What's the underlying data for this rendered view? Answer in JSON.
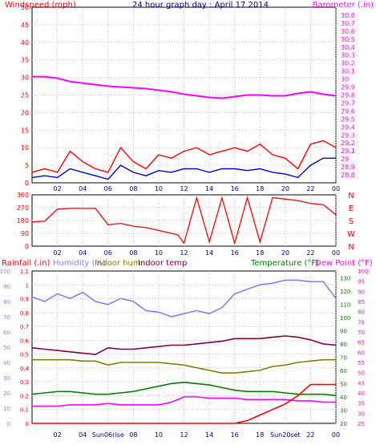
{
  "chart_data": [
    {
      "type": "line",
      "title": "24 hour graph day : April 17 2014",
      "ylabel_left": "Windspeed (mph)",
      "ylabel_right": "Barometer (.in)",
      "x_ticks": [
        "02",
        "04",
        "06",
        "08",
        "10",
        "12",
        "14",
        "16",
        "18",
        "20",
        "22",
        "00"
      ],
      "ylim_left": [
        0,
        50
      ],
      "ylim_right": [
        28.7,
        30.9
      ],
      "yticks_left": [
        "0",
        "5",
        "10",
        "15",
        "20",
        "25",
        "30",
        "35",
        "40",
        "45",
        "50"
      ],
      "yticks_right": [
        "28.8",
        "28.9",
        "29",
        "29.1",
        "29.2",
        "29.3",
        "29.4",
        "29.5",
        "29.6",
        "29.7",
        "29.8",
        "29.9",
        "30",
        "30.1",
        "30.2",
        "30.3",
        "30.4",
        "30.5",
        "30.6",
        "30.7",
        "30.8"
      ],
      "grid": true,
      "series": [
        {
          "name": "Barometer",
          "color": "#ff00ff",
          "axis": "right",
          "x": [
            0,
            1,
            2,
            3,
            4,
            5,
            6,
            7,
            8,
            9,
            10,
            11,
            12,
            13,
            14,
            15,
            16,
            17,
            18,
            19,
            20,
            21,
            22,
            23,
            24
          ],
          "values": [
            30.03,
            30.03,
            30.01,
            29.97,
            29.95,
            29.93,
            29.91,
            29.9,
            29.89,
            29.88,
            29.86,
            29.84,
            29.81,
            29.79,
            29.77,
            29.76,
            29.78,
            29.8,
            29.8,
            29.79,
            29.79,
            29.82,
            29.84,
            29.81,
            29.79
          ]
        },
        {
          "name": "Wind gust",
          "color": "#ff0000",
          "axis": "left",
          "x": [
            0,
            1,
            2,
            3,
            4,
            5,
            6,
            7,
            8,
            9,
            10,
            11,
            12,
            13,
            14,
            15,
            16,
            17,
            18,
            19,
            20,
            21,
            22,
            23,
            24
          ],
          "values": [
            3,
            4,
            3,
            9,
            6,
            4,
            3,
            10,
            6,
            4,
            8,
            7,
            9,
            10,
            8,
            9,
            10,
            9,
            11,
            8,
            7,
            4,
            11,
            12,
            10
          ]
        },
        {
          "name": "Wind speed",
          "color": "#0000cc",
          "axis": "left",
          "x": [
            0,
            1,
            2,
            3,
            4,
            5,
            6,
            7,
            8,
            9,
            10,
            11,
            12,
            13,
            14,
            15,
            16,
            17,
            18,
            19,
            20,
            21,
            22,
            23,
            24
          ],
          "values": [
            1.5,
            2,
            1.5,
            4,
            3,
            2,
            1,
            5,
            3,
            2,
            3.5,
            3,
            4,
            4,
            3,
            4,
            4,
            3.5,
            4,
            3,
            2.5,
            1.5,
            5,
            7,
            7
          ]
        }
      ]
    },
    {
      "type": "line",
      "ylabel_right": "N W S E N",
      "x_ticks": [
        "02",
        "04",
        "06",
        "08",
        "10",
        "12",
        "14",
        "16",
        "18",
        "20",
        "22",
        "00"
      ],
      "ylim": [
        0,
        360
      ],
      "yticks_left": [
        "0",
        "90",
        "180",
        "270",
        "360"
      ],
      "direction_labels": [
        "N",
        "W",
        "S",
        "E",
        "N"
      ],
      "grid": true,
      "series": [
        {
          "name": "Wind direction",
          "color": "#ff0000",
          "x": [
            0,
            1,
            2,
            3,
            4,
            5,
            6,
            7,
            8,
            9,
            10,
            11,
            11.5,
            12,
            13,
            14,
            15,
            16,
            17,
            18,
            19,
            20,
            21,
            22,
            23,
            24
          ],
          "values": [
            170,
            175,
            260,
            265,
            265,
            265,
            150,
            160,
            140,
            130,
            110,
            90,
            80,
            20,
            340,
            30,
            340,
            20,
            340,
            30,
            340,
            330,
            320,
            300,
            290,
            220
          ]
        }
      ]
    },
    {
      "type": "line",
      "x_ticks": [
        "02",
        "04",
        "Sun06rise",
        "08",
        "10",
        "12",
        "14",
        "16",
        "18",
        "Sun20set",
        "22",
        "00"
      ],
      "legend_top": [
        "Rainfall (.in)",
        "Humidity (%)",
        "Indoor hum",
        "Indoor temp",
        "Temperature (°F)",
        "Dew Point (°F)"
      ],
      "yaxis_rain": [
        "0",
        "0.1",
        "0.2",
        "0.3",
        "0.4",
        "0.5",
        "0.6",
        "0.7",
        "0.8",
        "0.9",
        "1",
        "1.1"
      ],
      "yaxis_humidity": [
        "0",
        "10",
        "20",
        "30",
        "40",
        "50",
        "60",
        "70",
        "80",
        "90",
        "100"
      ],
      "yaxis_temp": [
        "20",
        "30",
        "40",
        "50",
        "60",
        "70",
        "80",
        "90",
        "100",
        "110",
        "120",
        "130"
      ],
      "yaxis_dew": [
        "25",
        "30",
        "35",
        "40",
        "45",
        "50",
        "55",
        "60",
        "65",
        "70",
        "75",
        "80",
        "85",
        "90",
        "95",
        "100"
      ],
      "grid": true,
      "series": [
        {
          "name": "Humidity",
          "color": "#8080ff",
          "axis": "humidity",
          "x": [
            0,
            1,
            2,
            3,
            4,
            5,
            6,
            7,
            8,
            9,
            10,
            11,
            12,
            13,
            14,
            15,
            16,
            17,
            18,
            19,
            20,
            21,
            22,
            23,
            24
          ],
          "values": [
            83,
            80,
            85,
            82,
            86,
            80,
            78,
            82,
            80,
            74,
            73,
            70,
            72,
            74,
            72,
            76,
            85,
            88,
            91,
            92,
            94,
            94,
            93,
            93,
            82
          ]
        },
        {
          "name": "Indoor temp",
          "color": "#800040",
          "axis": "temp",
          "x": [
            0,
            1,
            2,
            3,
            4,
            5,
            6,
            7,
            8,
            9,
            10,
            11,
            12,
            13,
            14,
            15,
            16,
            17,
            18,
            19,
            20,
            21,
            22,
            23,
            24
          ],
          "values": [
            77,
            76,
            75,
            74,
            73,
            72,
            77,
            76,
            76,
            77,
            78,
            79,
            79,
            80,
            81,
            82,
            84,
            84,
            84,
            85,
            86,
            85,
            83,
            80,
            79
          ]
        },
        {
          "name": "Indoor hum",
          "color": "#808000",
          "axis": "temp",
          "x": [
            0,
            1,
            2,
            3,
            4,
            5,
            6,
            7,
            8,
            9,
            10,
            11,
            12,
            13,
            14,
            15,
            16,
            17,
            18,
            19,
            20,
            21,
            22,
            23,
            24
          ],
          "values": [
            68,
            68,
            68,
            68,
            67,
            67,
            64,
            66,
            66,
            66,
            66,
            65,
            64,
            62,
            60,
            58,
            58,
            59,
            60,
            63,
            64,
            66,
            67,
            68,
            68
          ]
        },
        {
          "name": "Temperature",
          "color": "#008000",
          "axis": "temp",
          "x": [
            0,
            1,
            2,
            3,
            4,
            5,
            6,
            7,
            8,
            9,
            10,
            11,
            12,
            13,
            14,
            15,
            16,
            17,
            18,
            19,
            20,
            21,
            22,
            23,
            24
          ],
          "values": [
            42,
            43,
            44,
            44,
            43,
            42,
            42,
            43,
            44,
            46,
            48,
            50,
            51,
            50,
            49,
            47,
            45,
            44,
            44,
            44,
            43,
            42,
            42,
            42,
            41
          ]
        },
        {
          "name": "Dew Point",
          "color": "#ff00ff",
          "axis": "temp",
          "x": [
            0,
            1,
            2,
            3,
            4,
            5,
            6,
            7,
            8,
            9,
            10,
            11,
            12,
            13,
            14,
            15,
            16,
            17,
            18,
            19,
            20,
            21,
            22,
            23,
            24
          ],
          "values": [
            33,
            33,
            33,
            34,
            34,
            34,
            35,
            34,
            34,
            34,
            34,
            36,
            40,
            40,
            39,
            39,
            39,
            38,
            38,
            38,
            38,
            37,
            37,
            36,
            36
          ]
        },
        {
          "name": "Rainfall",
          "color": "#ff0000",
          "axis": "rain",
          "x": [
            0,
            1,
            2,
            3,
            4,
            5,
            6,
            7,
            8,
            9,
            10,
            11,
            12,
            13,
            14,
            15,
            16,
            17,
            18,
            19,
            20,
            21,
            22,
            23,
            24
          ],
          "values": [
            0,
            0,
            0,
            0,
            0,
            0,
            0,
            0,
            0,
            0,
            0,
            0,
            0,
            0,
            0,
            0,
            0,
            0.02,
            0.06,
            0.1,
            0.14,
            0.2,
            0.28,
            0.28,
            0.28
          ]
        }
      ]
    }
  ]
}
